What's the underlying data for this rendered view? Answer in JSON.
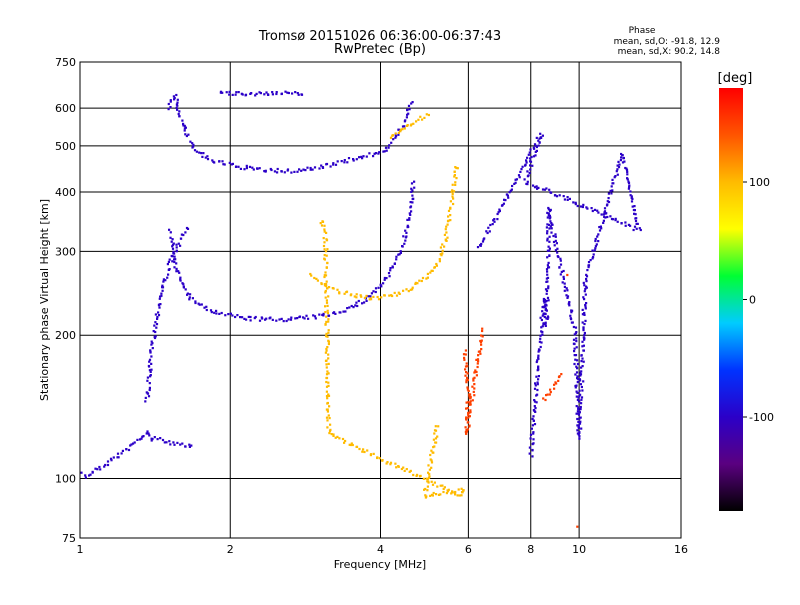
{
  "header": {
    "title_line1": "Tromsø 20151026 06:36:00-06:37:43",
    "title_line2": "RwPretec (Bp)",
    "phase_label": "Phase",
    "phase_o_stats": "mean, sd,O: -91.8, 12.9",
    "phase_x_stats": "mean, sd,X:  90.2, 14.8"
  },
  "colorbar": {
    "unit": "[deg]",
    "tick_labels": [
      "100",
      "0",
      "-100"
    ],
    "tick_values": [
      100,
      0,
      -100
    ],
    "range": [
      -180,
      180
    ],
    "stops": [
      "#000000",
      "#5a0080",
      "#2b00c8",
      "#0033ff",
      "#00ccff",
      "#00ff33",
      "#ffff00",
      "#ffbb00",
      "#ff5500",
      "#ff0000"
    ]
  },
  "chart_data": {
    "type": "scatter",
    "title": "Tromsø 20151026 06:36:00-06:37:43",
    "subtitle": "RwPretec (Bp)",
    "xlabel": "Frequency [MHz]",
    "ylabel": "Stationary phase Virtual Height [km]",
    "x_scale": "log",
    "y_scale": "log",
    "xlim": [
      1,
      16
    ],
    "ylim": [
      75,
      750
    ],
    "x_ticks": [
      1,
      2,
      4,
      6,
      8,
      10,
      16
    ],
    "x_tick_labels": [
      "1",
      "2",
      "4",
      "6",
      "8",
      "10",
      "16"
    ],
    "y_ticks": [
      75,
      100,
      200,
      300,
      400,
      500,
      600,
      750
    ],
    "y_tick_labels": [
      "75",
      "100",
      "200",
      "300",
      "400",
      "500",
      "600",
      "750"
    ],
    "grid": true,
    "color_by": "phase_deg",
    "traces": [
      {
        "name": "",
        "phase": -100,
        "points": [
          [
            1.0,
            103
          ],
          [
            1.03,
            101
          ],
          [
            1.07,
            104
          ],
          [
            1.12,
            107
          ],
          [
            1.18,
            111
          ],
          [
            1.24,
            115
          ],
          [
            1.3,
            120
          ],
          [
            1.36,
            125
          ],
          [
            1.4,
            121
          ]
        ]
      },
      {
        "name": "",
        "phase": -100,
        "points": [
          [
            1.36,
            145
          ],
          [
            1.38,
            165
          ],
          [
            1.39,
            185
          ],
          [
            1.41,
            205
          ],
          [
            1.43,
            225
          ],
          [
            1.46,
            250
          ],
          [
            1.5,
            275
          ],
          [
            1.55,
            300
          ],
          [
            1.6,
            320
          ],
          [
            1.64,
            335
          ]
        ]
      },
      {
        "name": "",
        "phase": -100,
        "points": [
          [
            1.52,
            330
          ],
          [
            1.55,
            280
          ],
          [
            1.6,
            255
          ],
          [
            1.66,
            240
          ],
          [
            1.75,
            230
          ],
          [
            1.85,
            224
          ],
          [
            1.95,
            221
          ],
          [
            2.1,
            218
          ],
          [
            2.3,
            216
          ],
          [
            2.5,
            216
          ],
          [
            2.75,
            217
          ],
          [
            3.0,
            219
          ],
          [
            3.2,
            222
          ],
          [
            3.45,
            228
          ],
          [
            3.7,
            236
          ],
          [
            3.9,
            248
          ],
          [
            4.1,
            262
          ],
          [
            4.3,
            285
          ],
          [
            4.45,
            315
          ],
          [
            4.55,
            350
          ],
          [
            4.62,
            390
          ],
          [
            4.66,
            420
          ]
        ]
      },
      {
        "name": "",
        "phase": 100,
        "points": [
          [
            2.9,
            268
          ],
          [
            3.05,
            258
          ],
          [
            3.2,
            250
          ],
          [
            3.4,
            245
          ],
          [
            3.6,
            241
          ],
          [
            3.85,
            240
          ],
          [
            4.1,
            241
          ],
          [
            4.4,
            245
          ],
          [
            4.7,
            254
          ],
          [
            5.0,
            268
          ],
          [
            5.25,
            290
          ],
          [
            5.4,
            320
          ],
          [
            5.5,
            355
          ],
          [
            5.58,
            390
          ],
          [
            5.63,
            420
          ],
          [
            5.68,
            455
          ]
        ]
      },
      {
        "name": "",
        "phase": -100,
        "points": [
          [
            1.5,
            600
          ],
          [
            1.55,
            640
          ],
          [
            1.6,
            560
          ],
          [
            1.65,
            520
          ],
          [
            1.7,
            490
          ],
          [
            1.8,
            470
          ],
          [
            2.0,
            455
          ],
          [
            2.3,
            445
          ],
          [
            2.6,
            442
          ],
          [
            3.0,
            450
          ],
          [
            3.4,
            465
          ],
          [
            3.8,
            478
          ],
          [
            4.1,
            492
          ],
          [
            4.3,
            520
          ],
          [
            4.45,
            560
          ],
          [
            4.6,
            620
          ]
        ]
      },
      {
        "name": "",
        "phase": 100,
        "points": [
          [
            4.2,
            520
          ],
          [
            4.4,
            540
          ],
          [
            4.6,
            555
          ],
          [
            4.8,
            570
          ],
          [
            5.0,
            580
          ]
        ]
      },
      {
        "name": "",
        "phase": -100,
        "points": [
          [
            1.9,
            646
          ],
          [
            2.1,
            645
          ],
          [
            2.3,
            644
          ],
          [
            2.6,
            644
          ],
          [
            2.8,
            646
          ]
        ]
      },
      {
        "name": "",
        "phase": -100,
        "points": [
          [
            1.4,
            122
          ],
          [
            1.5,
            119
          ],
          [
            1.6,
            118
          ],
          [
            1.68,
            117
          ]
        ]
      },
      {
        "name": "",
        "phase": 100,
        "points": [
          [
            3.05,
            350
          ],
          [
            3.1,
            330
          ],
          [
            3.15,
            125
          ],
          [
            3.2,
            123
          ],
          [
            5.8,
            92
          ],
          [
            5.85,
            94
          ],
          [
            5.9,
            95
          ],
          [
            4.9,
            92
          ],
          [
            5.2,
            130
          ]
        ]
      },
      {
        "name": "",
        "phase": -100,
        "points": [
          [
            8.0,
            112
          ],
          [
            8.5,
            240
          ],
          [
            8.6,
            210
          ],
          [
            8.7,
            370
          ],
          [
            8.8,
            340
          ],
          [
            9.8,
            205
          ],
          [
            10.0,
            122
          ],
          [
            10.3,
            265
          ],
          [
            12.2,
            482
          ],
          [
            13.2,
            333
          ],
          [
            7.8,
            420
          ],
          [
            8.4,
            530
          ],
          [
            6.3,
            305
          ]
        ]
      },
      {
        "name": "",
        "phase": 150,
        "points": [
          [
            5.9,
            185
          ],
          [
            5.95,
            170
          ],
          [
            6.0,
            150
          ],
          [
            5.95,
            125
          ],
          [
            6.4,
            205
          ],
          [
            8.5,
            146
          ],
          [
            9.2,
            165
          ],
          [
            9.9,
            80
          ],
          [
            9.5,
            270
          ]
        ]
      }
    ]
  }
}
